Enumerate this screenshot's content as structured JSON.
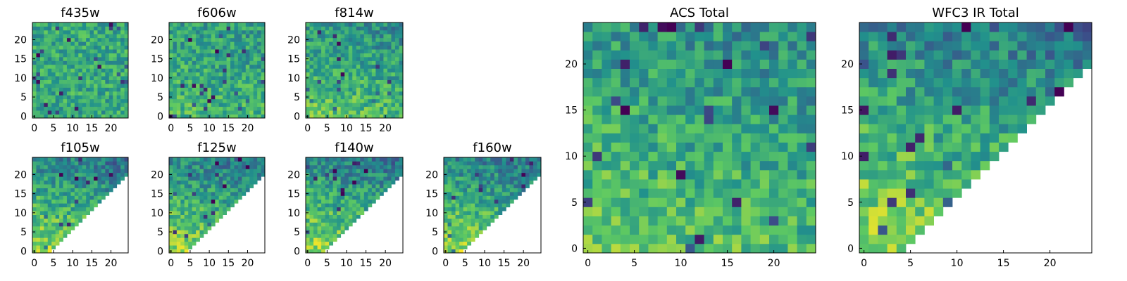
{
  "chart_data": [
    {
      "type": "heatmap",
      "title": "f435w",
      "colormap": "viridis",
      "grid": false,
      "xlim": [
        -0.5,
        24.5
      ],
      "ylim": [
        -0.5,
        24.5
      ],
      "xticks": [
        0,
        5,
        10,
        15,
        20
      ],
      "yticks": [
        0,
        5,
        10,
        15,
        20
      ],
      "xticklabels": [
        "0",
        "5",
        "10",
        "15",
        "20"
      ],
      "yticklabels": [
        "0",
        "5",
        "10",
        "15",
        "20"
      ],
      "mask": "none",
      "trend": "uniform"
    },
    {
      "type": "heatmap",
      "title": "f606w",
      "colormap": "viridis",
      "grid": false,
      "xlim": [
        -0.5,
        24.5
      ],
      "ylim": [
        -0.5,
        24.5
      ],
      "xticks": [
        0,
        5,
        10,
        15,
        20
      ],
      "yticks": [
        0,
        5,
        10,
        15,
        20
      ],
      "xticklabels": [
        "0",
        "5",
        "10",
        "15",
        "20"
      ],
      "yticklabels": [
        "0",
        "5",
        "10",
        "15",
        "20"
      ],
      "mask": "none",
      "trend": "weak"
    },
    {
      "type": "heatmap",
      "title": "f814w",
      "colormap": "viridis",
      "grid": false,
      "xlim": [
        -0.5,
        24.5
      ],
      "ylim": [
        -0.5,
        24.5
      ],
      "xticks": [
        0,
        5,
        10,
        15,
        20
      ],
      "yticks": [
        0,
        5,
        10,
        15,
        20
      ],
      "xticklabels": [
        "0",
        "5",
        "10",
        "15",
        "20"
      ],
      "yticklabels": [
        "0",
        "5",
        "10",
        "15",
        "20"
      ],
      "mask": "none",
      "trend": "medium"
    },
    {
      "type": "heatmap",
      "title": "f105w",
      "colormap": "viridis",
      "grid": false,
      "xlim": [
        -0.5,
        24.5
      ],
      "ylim": [
        -0.5,
        24.5
      ],
      "xticks": [
        0,
        5,
        10,
        15,
        20
      ],
      "yticks": [
        0,
        5,
        10,
        15,
        20
      ],
      "xticklabels": [
        "0",
        "5",
        "10",
        "15",
        "20"
      ],
      "yticklabels": [
        "0",
        "5",
        "10",
        "15",
        "20"
      ],
      "mask": "lower-right triangle empty",
      "trend": "strong"
    },
    {
      "type": "heatmap",
      "title": "f125w",
      "colormap": "viridis",
      "grid": false,
      "xlim": [
        -0.5,
        24.5
      ],
      "ylim": [
        -0.5,
        24.5
      ],
      "xticks": [
        0,
        5,
        10,
        15,
        20
      ],
      "yticks": [
        0,
        5,
        10,
        15,
        20
      ],
      "xticklabels": [
        "0",
        "5",
        "10",
        "15",
        "20"
      ],
      "yticklabels": [
        "0",
        "5",
        "10",
        "15",
        "20"
      ],
      "mask": "lower-right triangle empty",
      "trend": "strong"
    },
    {
      "type": "heatmap",
      "title": "f140w",
      "colormap": "viridis",
      "grid": false,
      "xlim": [
        -0.5,
        24.5
      ],
      "ylim": [
        -0.5,
        24.5
      ],
      "xticks": [
        0,
        5,
        10,
        15,
        20
      ],
      "yticks": [
        0,
        5,
        10,
        15,
        20
      ],
      "xticklabels": [
        "0",
        "5",
        "10",
        "15",
        "20"
      ],
      "yticklabels": [
        "0",
        "5",
        "10",
        "15",
        "20"
      ],
      "mask": "lower-right triangle empty",
      "trend": "strong"
    },
    {
      "type": "heatmap",
      "title": "f160w",
      "colormap": "viridis",
      "grid": false,
      "xlim": [
        -0.5,
        24.5
      ],
      "ylim": [
        -0.5,
        24.5
      ],
      "xticks": [
        0,
        5,
        10,
        15,
        20
      ],
      "yticks": [
        0,
        5,
        10,
        15,
        20
      ],
      "xticklabels": [
        "0",
        "5",
        "10",
        "15",
        "20"
      ],
      "yticklabels": [
        "0",
        "5",
        "10",
        "15",
        "20"
      ],
      "mask": "lower-right triangle empty",
      "trend": "strong"
    },
    {
      "type": "heatmap",
      "title": "ACS Total",
      "colormap": "viridis",
      "grid": false,
      "xlim": [
        -0.5,
        24.5
      ],
      "ylim": [
        -0.5,
        24.5
      ],
      "xticks": [
        0,
        5,
        10,
        15,
        20
      ],
      "yticks": [
        0,
        5,
        10,
        15,
        20
      ],
      "xticklabels": [
        "0",
        "5",
        "10",
        "15",
        "20"
      ],
      "yticklabels": [
        "0",
        "5",
        "10",
        "15",
        "20"
      ],
      "mask": "none",
      "trend": "medium"
    },
    {
      "type": "heatmap",
      "title": "WFC3 IR Total",
      "colormap": "viridis",
      "grid": false,
      "xlim": [
        -0.5,
        24.5
      ],
      "ylim": [
        -0.5,
        24.5
      ],
      "xticks": [
        0,
        5,
        10,
        15,
        20
      ],
      "yticks": [
        0,
        5,
        10,
        15,
        20
      ],
      "xticklabels": [
        "0",
        "5",
        "10",
        "15",
        "20"
      ],
      "yticklabels": [
        "0",
        "5",
        "10",
        "15",
        "20"
      ],
      "mask": "lower-right triangle empty",
      "trend": "strong"
    }
  ],
  "colors": {
    "viridis_low": "#440154",
    "viridis_mid": "#21918c",
    "viridis_high": "#fde725",
    "axes": "#000000",
    "background": "#ffffff"
  }
}
